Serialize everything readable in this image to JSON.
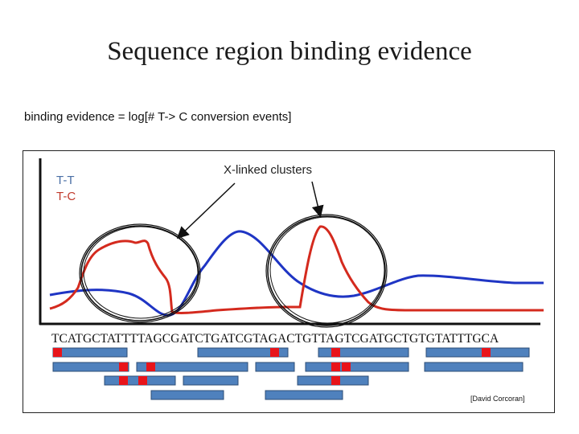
{
  "title": "Sequence region binding evidence",
  "subtitle": "binding evidence = log[# T-> C conversion events]",
  "legend": {
    "tt_label": "T-T",
    "tc_label": "T-C"
  },
  "callout": "X-linked clusters",
  "sequence": "TCATGCTATTTTAGCGATCTGATCGTAGACTGTTAGTCGATGCTGTGTATTTGCA",
  "credit": "[David Corcoran]",
  "colors": {
    "tt_series": "#1f35c4",
    "tc_series": "#d42a1e",
    "read_bar": "#4f81bd",
    "mismatch": "#e8141a"
  }
}
